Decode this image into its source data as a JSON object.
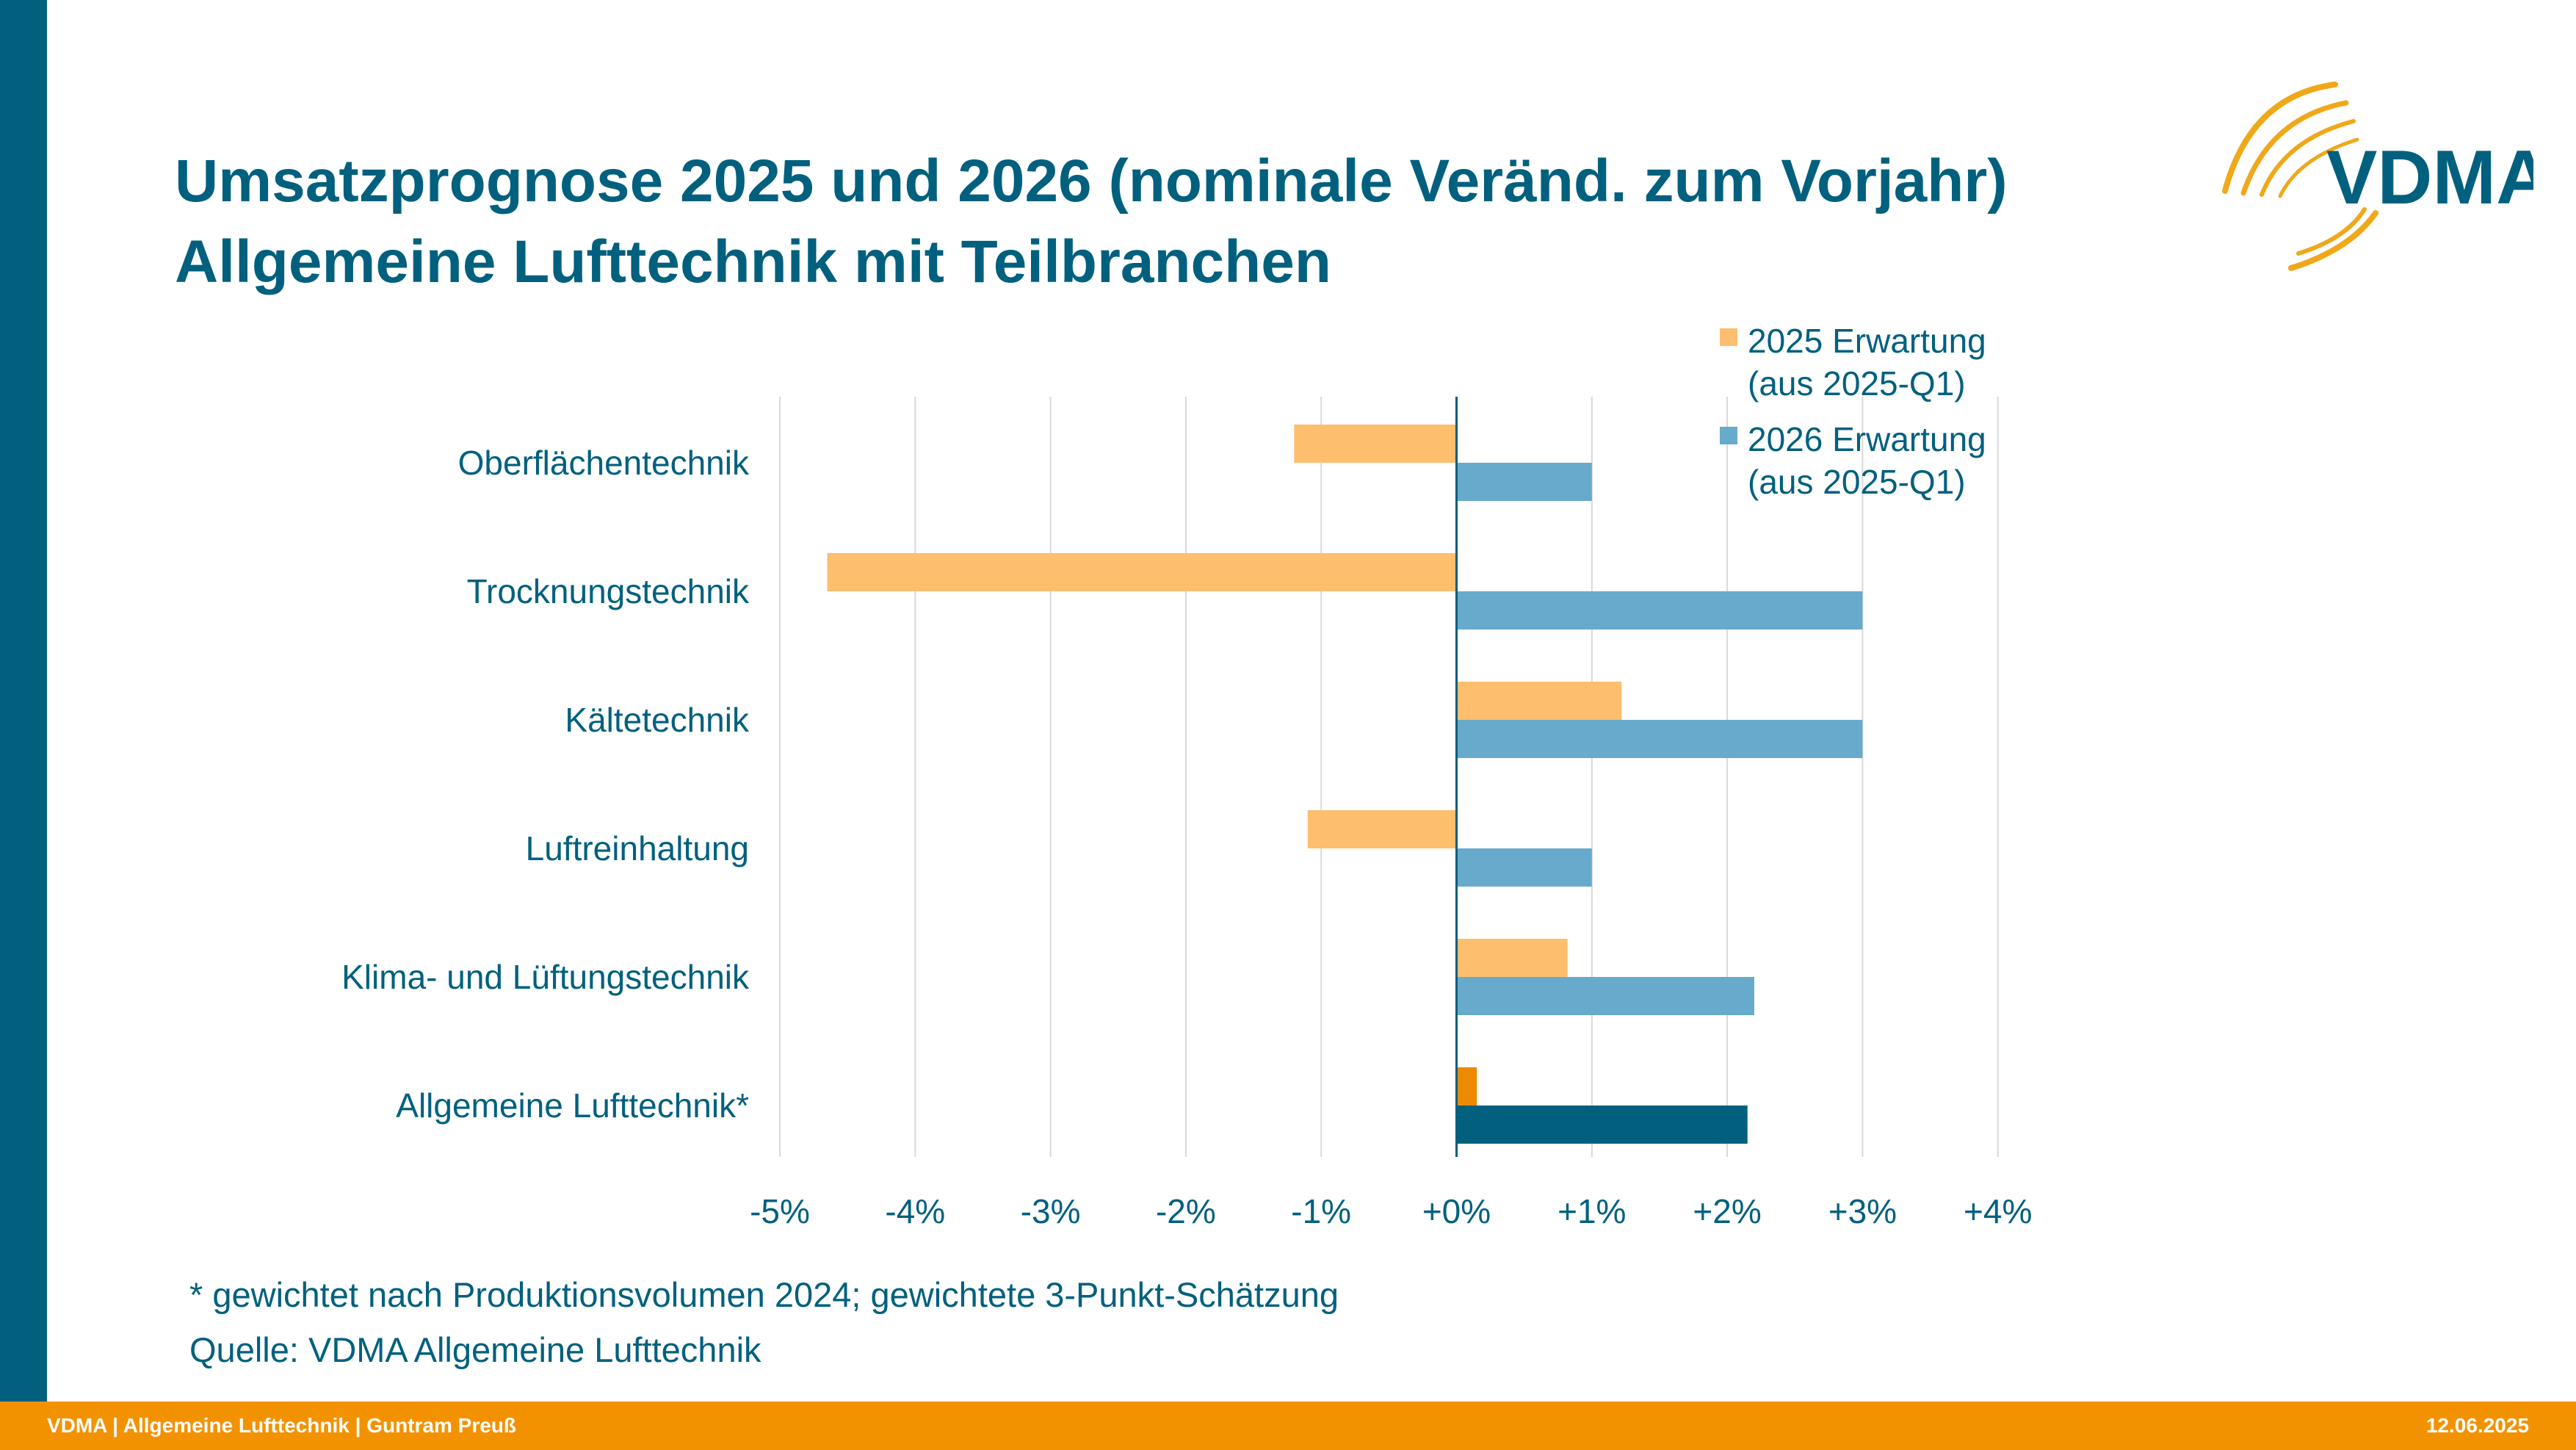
{
  "header": {
    "title_line1": "Umsatzprognose 2025 und 2026 (nominale Veränd. zum Vorjahr)",
    "title_line2": "Allgemeine Lufttechnik mit Teilbranchen",
    "logo_text": "VDMA"
  },
  "chart_data": {
    "type": "bar",
    "orientation": "horizontal",
    "categories": [
      "Oberflächentechnik",
      "Trocknungstechnik",
      "Kältetechnik",
      "Luftreinhaltung",
      "Klima- und Lüftungstechnik",
      "Allgemeine Lufttechnik*"
    ],
    "series": [
      {
        "name": "2025 Erwartung (aus 2025-Q1)",
        "legend_lines": [
          "2025 Erwartung",
          "(aus 2025-Q1)"
        ],
        "values": [
          -1.2,
          -4.65,
          1.22,
          -1.1,
          0.82,
          0.15
        ],
        "color": "#fdbe6e",
        "highlight_last_color": "#ed8b00"
      },
      {
        "name": "2026 Erwartung (aus 2025-Q1)",
        "legend_lines": [
          "2026 Erwartung",
          "(aus 2025-Q1)"
        ],
        "values": [
          1.0,
          3.0,
          3.0,
          1.0,
          2.2,
          2.15
        ],
        "color": "#67aacb",
        "highlight_last_color": "#00607e"
      }
    ],
    "xlim": [
      -5,
      4
    ],
    "xticks": [
      -5,
      -4,
      -3,
      -2,
      -1,
      0,
      1,
      2,
      3,
      4
    ],
    "xtick_labels": [
      "-5%",
      "-4%",
      "-3%",
      "-2%",
      "-1%",
      "+0%",
      "+1%",
      "+2%",
      "+3%",
      "+4%"
    ],
    "grid": true,
    "legend_position": "top-right"
  },
  "notes": {
    "footnote": "* gewichtet nach Produktionsvolumen 2024; gewichtete 3-Punkt-Schätzung",
    "source": "Quelle: VDMA Allgemeine Lufttechnik"
  },
  "footer": {
    "left": "VDMA | Allgemeine Lufttechnik | Guntram Preuß",
    "date": "12.06.2025"
  },
  "colors": {
    "brand_blue": "#00607e",
    "brand_orange": "#f39200",
    "text": "#00607e",
    "grid": "#d9d9d9"
  }
}
